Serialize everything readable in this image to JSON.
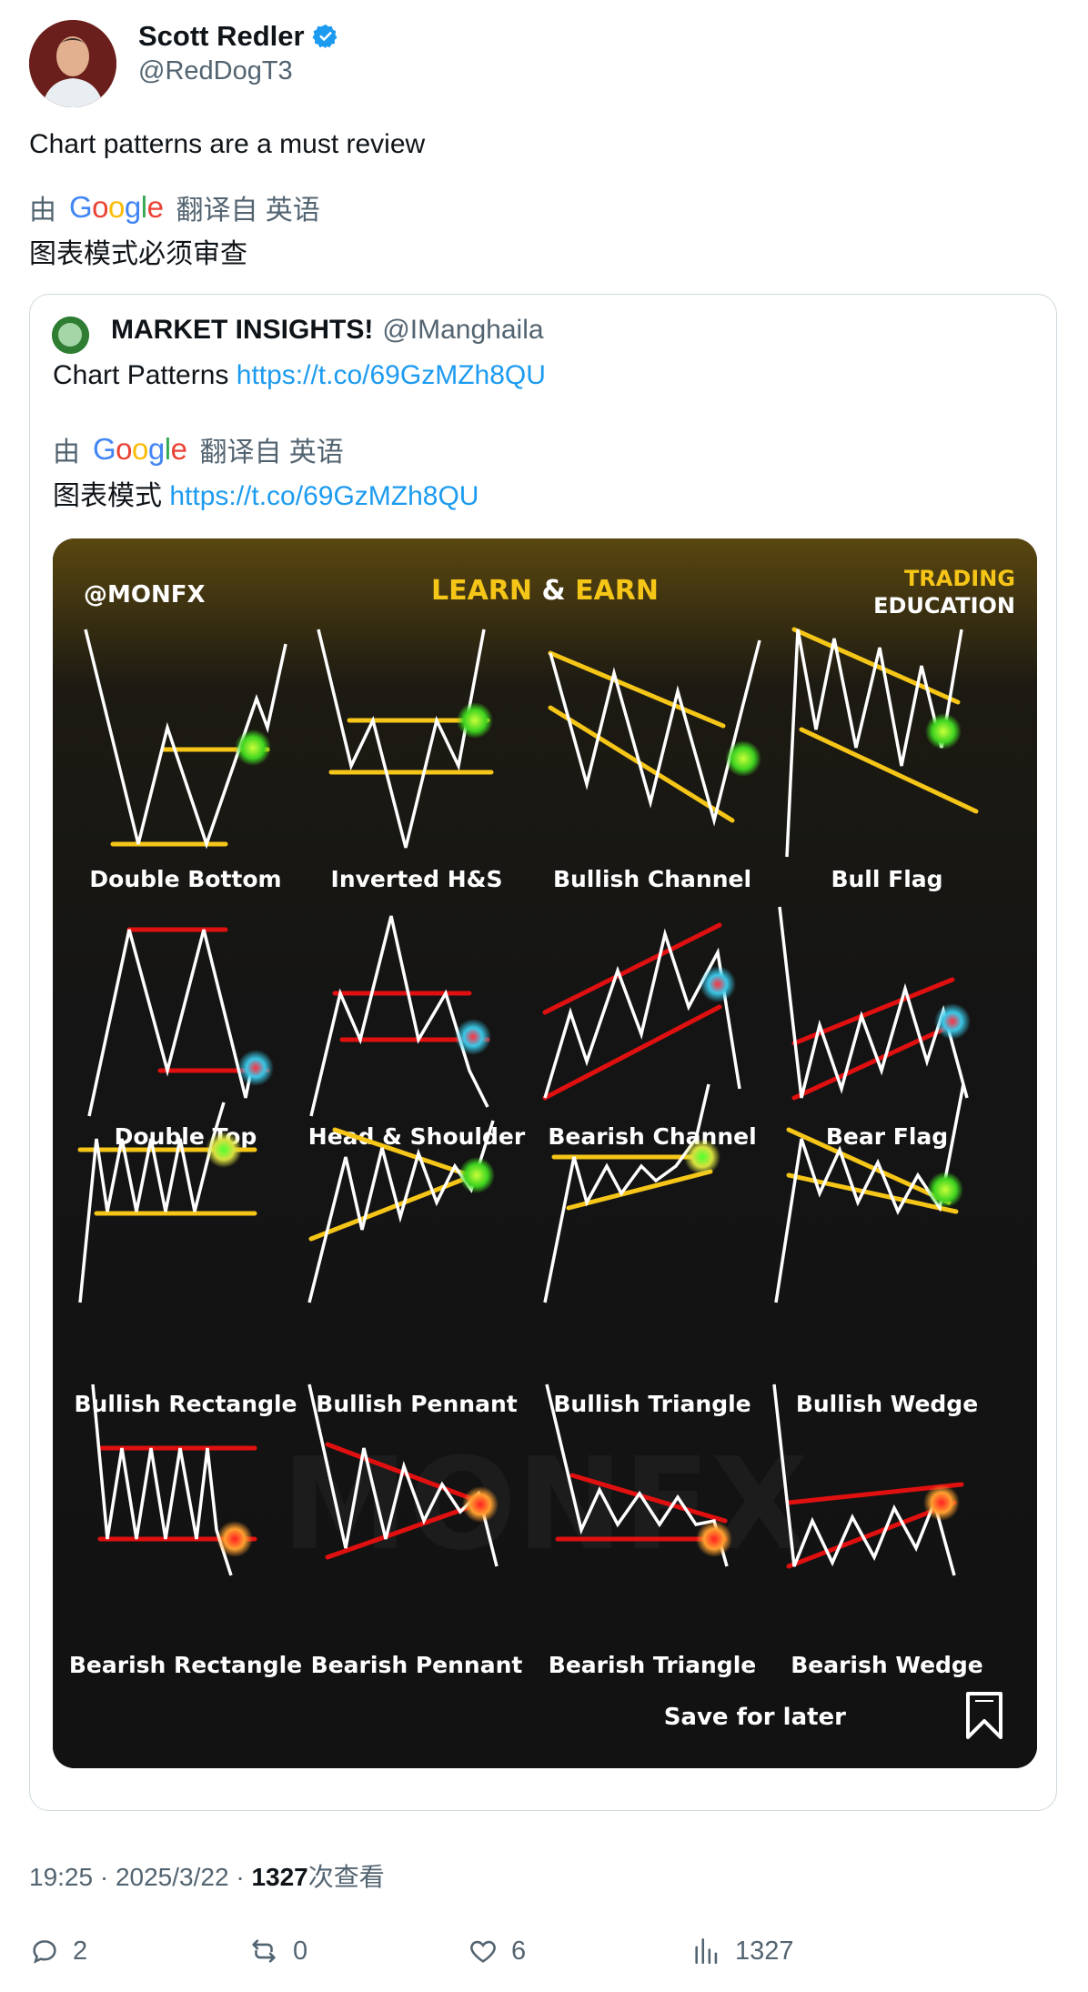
{
  "author": {
    "name": "Scott Redler",
    "handle": "@RedDogT3"
  },
  "tweet": {
    "text": "Chart patterns are a must review",
    "translate_prefix": "由",
    "translate_suffix": "翻译自 英语",
    "translated_text": "图表模式必须审查"
  },
  "quoted": {
    "name": "MARKET INSIGHTS!",
    "handle": "@IManghaila",
    "text": "Chart Patterns",
    "link": "https://t.co/69GzMZh8QU",
    "translate_prefix": "由",
    "translate_suffix": "翻译自 英语",
    "translated_text": "图表模式",
    "translated_link": "https://t.co/69GzMZh8QU",
    "media": {
      "brand": "@MONFX",
      "headline_left": "LEARN",
      "headline_amp": "&",
      "headline_right": "EARN",
      "corner_line1": "TRADING",
      "corner_line2": "EDUCATION",
      "watermark": "MONFX",
      "patterns": [
        "Double Bottom",
        "Inverted H&S",
        "Bullish Channel",
        "Bull Flag",
        "Double Top",
        "Head & Shoulder",
        "Bearish Channel",
        "Bear Flag",
        "Bullish Rectangle",
        "Bullish Pennant",
        "Bullish Triangle",
        "Bullish Wedge",
        "Bearish Rectangle",
        "Bearish Pennant",
        "Bearish Triangle",
        "Bearish Wedge"
      ],
      "save_label": "Save for later"
    }
  },
  "meta": {
    "time": "19:25",
    "date": "2025/3/22",
    "views": "1327",
    "views_suffix": "次查看"
  },
  "actions": {
    "replies": "2",
    "retweets": "0",
    "likes": "6",
    "views": "1327"
  },
  "colors": {
    "link": "#1d9bf0",
    "verified": "#1d9bf0",
    "bull": "#f5c518",
    "bear": "#e01010",
    "muted": "#536471"
  }
}
